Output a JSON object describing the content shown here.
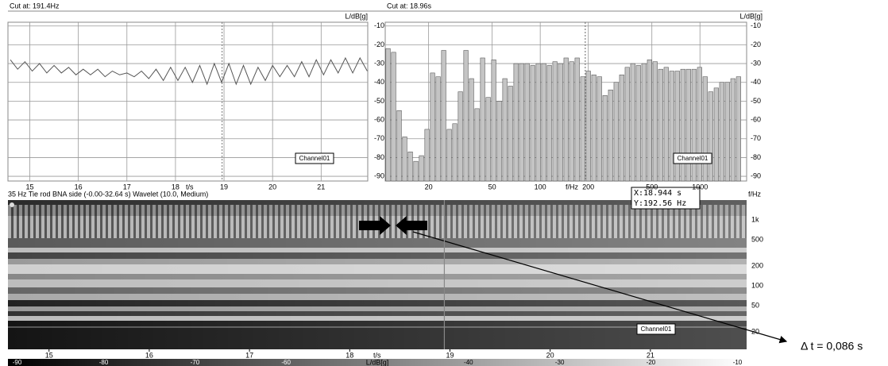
{
  "chart_data": [
    {
      "type": "line",
      "title": "Cut at: 191.4Hz",
      "y_label": "L/dB[g]",
      "x_label": "t/s",
      "x": [
        14.6,
        14.75,
        14.9,
        15.05,
        15.2,
        15.35,
        15.5,
        15.65,
        15.8,
        15.95,
        16.1,
        16.25,
        16.4,
        16.55,
        16.7,
        16.85,
        17.0,
        17.15,
        17.3,
        17.45,
        17.6,
        17.75,
        17.9,
        18.05,
        18.2,
        18.35,
        18.5,
        18.65,
        18.8,
        18.95,
        19.1,
        19.25,
        19.4,
        19.55,
        19.7,
        19.85,
        20.0,
        20.15,
        20.3,
        20.45,
        20.6,
        20.75,
        20.9,
        21.05,
        21.2,
        21.35,
        21.5,
        21.65,
        21.8,
        21.95
      ],
      "series": [
        {
          "name": "Channel01",
          "color": "#555555",
          "values": [
            -28,
            -33,
            -29,
            -34,
            -30,
            -35,
            -31,
            -35,
            -32,
            -36,
            -33,
            -36,
            -33,
            -37,
            -34,
            -36,
            -35,
            -37,
            -34,
            -38,
            -33,
            -39,
            -32,
            -39,
            -32,
            -40,
            -31,
            -41,
            -30,
            -40,
            -30,
            -41,
            -31,
            -41,
            -32,
            -39,
            -31,
            -37,
            -31,
            -37,
            -29,
            -37,
            -28,
            -36,
            -28,
            -35,
            -27,
            -35,
            -27,
            -34
          ]
        }
      ],
      "xlim": [
        14.55,
        21.96
      ],
      "xticks": [
        15,
        16,
        17,
        18,
        19,
        20,
        21
      ],
      "ylim": [
        -92.5,
        -8
      ],
      "yticks": [
        -10,
        -20,
        -30,
        -40,
        -50,
        -60,
        -70,
        -80,
        -90
      ],
      "grid": true,
      "cursor": 18.96
    },
    {
      "type": "bar",
      "title": "Cut at: 18.96s",
      "y_label": "L/dB[g]",
      "x_label": "f/Hz",
      "log_x": true,
      "x": [
        11.15,
        12.08,
        13.09,
        14.18,
        15.37,
        16.65,
        18.04,
        19.55,
        21.18,
        22.95,
        24.87,
        26.94,
        29.19,
        31.63,
        34.27,
        37.13,
        40.23,
        43.59,
        47.23,
        51.18,
        55.45,
        60.08,
        65.1,
        70.54,
        76.43,
        82.81,
        89.72,
        97.21,
        105.3,
        114.1,
        123.7,
        134,
        145.2,
        157.3,
        170.4,
        184.7,
        200.1,
        216.8,
        234.9,
        254.5,
        275.8,
        298.8,
        323.8,
        350.8,
        380.1,
        411.8,
        446.2,
        483.5,
        523.9,
        567.6,
        615,
        666.4,
        722,
        782.3,
        847.6,
        918.4,
        995.1,
        1078,
        1168,
        1266,
        1371,
        1486,
        1610,
        1745
      ],
      "series": [
        {
          "name": "Channel01",
          "color": "#c4c4c4",
          "values": [
            -22,
            -24,
            -55,
            -69,
            -77,
            -82,
            -79,
            -65,
            -35,
            -37,
            -23,
            -65,
            -62,
            -45,
            -23,
            -38,
            -54,
            -27,
            -48,
            -28,
            -50,
            -38,
            -42,
            -30,
            -30,
            -30,
            -31,
            -30,
            -30,
            -31,
            -29,
            -30,
            -27,
            -29,
            -27,
            -37,
            -34,
            -36,
            -37,
            -47,
            -44,
            -40,
            -36,
            -32,
            -30,
            -31,
            -30,
            -28,
            -29,
            -33,
            -32,
            -34,
            -34,
            -33,
            -33,
            -33,
            -32,
            -37,
            -45,
            -43,
            -40,
            -40,
            -38,
            -37
          ]
        }
      ],
      "xlim": [
        10.7,
        1960
      ],
      "xticks": [
        20,
        50,
        100,
        200,
        500,
        1000
      ],
      "ylim": [
        -92.5,
        -8
      ],
      "yticks": [
        -10,
        -20,
        -30,
        -40,
        -50,
        -60,
        -70,
        -80,
        -90
      ],
      "grid": true,
      "cursor": 191.4
    },
    {
      "type": "heatmap",
      "title": "35 Hz Tie rod BNA side (-0.00-32.64 s) Wavelet (10.0, Medium)",
      "y_label": "f/Hz",
      "x_label": "t/s",
      "log_y": true,
      "series": [
        {
          "name": "Channel01"
        }
      ],
      "xlim": [
        14.59,
        21.96
      ],
      "xticks": [
        15,
        16,
        17,
        18,
        19,
        20,
        21
      ],
      "ylim": [
        10.9,
        2000
      ],
      "yticks": [
        {
          "value": 1000,
          "label": "1k"
        },
        500,
        200,
        100,
        50,
        20
      ],
      "cursor": 18.944,
      "readout": [
        "X:18.944 s",
        "Y:192.56 Hz"
      ],
      "annotation": "Δ t = 0,086 s",
      "colorbar": {
        "label": "L/dB[g]",
        "lim": [
          -90.5,
          -9.5
        ],
        "ticks": [
          -90,
          -80,
          -70,
          -60,
          -40,
          -30,
          -20,
          -10
        ]
      }
    }
  ]
}
